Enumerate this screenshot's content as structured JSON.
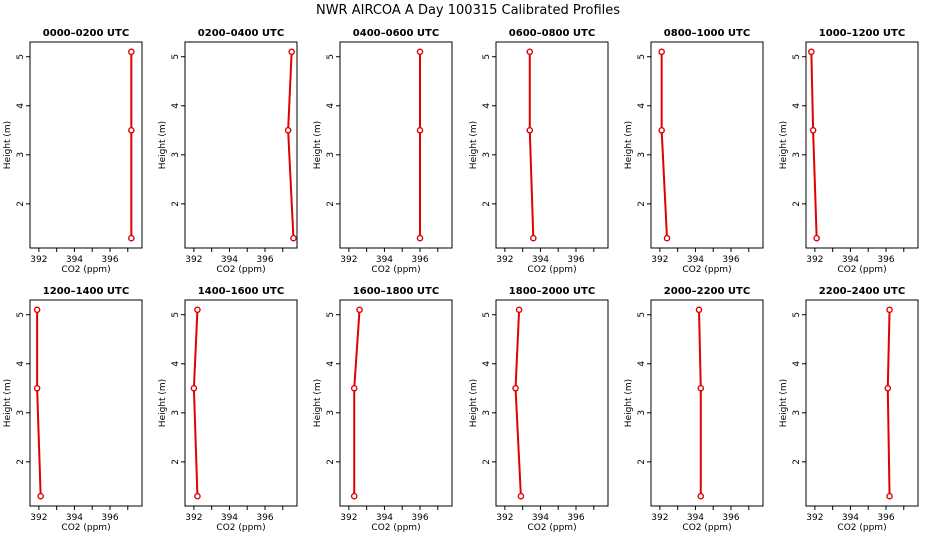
{
  "figure": {
    "title": "NWR AIRCOA A  Day 100315  Calibrated Profiles"
  },
  "colors": {
    "profile_line": "#e00000",
    "marker": "#e00000",
    "axis": "#000000",
    "background": "#ffffff"
  },
  "chart_data": [
    {
      "type": "line",
      "title": "0000–0200 UTC",
      "xlabel": "CO2 (ppm)",
      "ylabel": "Height (m)",
      "xlim": [
        391.5,
        397.8
      ],
      "ylim": [
        1.1,
        5.3
      ],
      "xticks": [
        "392",
        "394",
        "396"
      ],
      "yticks": [
        "2",
        "3",
        "4",
        "5"
      ],
      "x": [
        397.2,
        397.2,
        397.2
      ],
      "y": [
        1.3,
        3.5,
        5.1
      ]
    },
    {
      "type": "line",
      "title": "0200–0400 UTC",
      "xlabel": "CO2 (ppm)",
      "ylabel": "Height (m)",
      "xlim": [
        391.5,
        397.8
      ],
      "ylim": [
        1.1,
        5.3
      ],
      "xticks": [
        "392",
        "394",
        "396"
      ],
      "yticks": [
        "2",
        "3",
        "4",
        "5"
      ],
      "x": [
        397.6,
        397.3,
        397.5
      ],
      "y": [
        1.3,
        3.5,
        5.1
      ]
    },
    {
      "type": "line",
      "title": "0400–0600 UTC",
      "xlabel": "CO2 (ppm)",
      "ylabel": "Height (m)",
      "xlim": [
        391.5,
        397.8
      ],
      "ylim": [
        1.1,
        5.3
      ],
      "xticks": [
        "392",
        "394",
        "396"
      ],
      "yticks": [
        "2",
        "3",
        "4",
        "5"
      ],
      "x": [
        396.0,
        396.0,
        396.0
      ],
      "y": [
        1.3,
        3.5,
        5.1
      ]
    },
    {
      "type": "line",
      "title": "0600–0800 UTC",
      "xlabel": "CO2 (ppm)",
      "ylabel": "Height (m)",
      "xlim": [
        391.5,
        397.8
      ],
      "ylim": [
        1.1,
        5.3
      ],
      "xticks": [
        "392",
        "394",
        "396"
      ],
      "yticks": [
        "2",
        "3",
        "4",
        "5"
      ],
      "x": [
        393.6,
        393.4,
        393.4
      ],
      "y": [
        1.3,
        3.5,
        5.1
      ]
    },
    {
      "type": "line",
      "title": "0800–1000 UTC",
      "xlabel": "CO2 (ppm)",
      "ylabel": "Height (m)",
      "xlim": [
        391.5,
        397.8
      ],
      "ylim": [
        1.1,
        5.3
      ],
      "xticks": [
        "392",
        "394",
        "396"
      ],
      "yticks": [
        "2",
        "3",
        "4",
        "5"
      ],
      "x": [
        392.4,
        392.1,
        392.1
      ],
      "y": [
        1.3,
        3.5,
        5.1
      ]
    },
    {
      "type": "line",
      "title": "1000–1200 UTC",
      "xlabel": "CO2 (ppm)",
      "ylabel": "Height (m)",
      "xlim": [
        391.5,
        397.8
      ],
      "ylim": [
        1.1,
        5.3
      ],
      "xticks": [
        "392",
        "394",
        "396"
      ],
      "yticks": [
        "2",
        "3",
        "4",
        "5"
      ],
      "x": [
        392.1,
        391.9,
        391.8
      ],
      "y": [
        1.3,
        3.5,
        5.1
      ]
    },
    {
      "type": "line",
      "title": "1200–1400 UTC",
      "xlabel": "CO2 (ppm)",
      "ylabel": "Height (m)",
      "xlim": [
        391.5,
        397.8
      ],
      "ylim": [
        1.1,
        5.3
      ],
      "xticks": [
        "392",
        "394",
        "396"
      ],
      "yticks": [
        "2",
        "3",
        "4",
        "5"
      ],
      "x": [
        392.1,
        391.9,
        391.9
      ],
      "y": [
        1.3,
        3.5,
        5.1
      ]
    },
    {
      "type": "line",
      "title": "1400–1600 UTC",
      "xlabel": "CO2 (ppm)",
      "ylabel": "Height (m)",
      "xlim": [
        391.5,
        397.8
      ],
      "ylim": [
        1.1,
        5.3
      ],
      "xticks": [
        "392",
        "394",
        "396"
      ],
      "yticks": [
        "2",
        "3",
        "4",
        "5"
      ],
      "x": [
        392.2,
        392.0,
        392.2
      ],
      "y": [
        1.3,
        3.5,
        5.1
      ]
    },
    {
      "type": "line",
      "title": "1600–1800 UTC",
      "xlabel": "CO2 (ppm)",
      "ylabel": "Height (m)",
      "xlim": [
        391.5,
        397.8
      ],
      "ylim": [
        1.1,
        5.3
      ],
      "xticks": [
        "392",
        "394",
        "396"
      ],
      "yticks": [
        "2",
        "3",
        "4",
        "5"
      ],
      "x": [
        392.3,
        392.3,
        392.6
      ],
      "y": [
        1.3,
        3.5,
        5.1
      ]
    },
    {
      "type": "line",
      "title": "1800–2000 UTC",
      "xlabel": "CO2 (ppm)",
      "ylabel": "Height (m)",
      "xlim": [
        391.5,
        397.8
      ],
      "ylim": [
        1.1,
        5.3
      ],
      "xticks": [
        "392",
        "394",
        "396"
      ],
      "yticks": [
        "2",
        "3",
        "4",
        "5"
      ],
      "x": [
        392.9,
        392.6,
        392.8
      ],
      "y": [
        1.3,
        3.5,
        5.1
      ]
    },
    {
      "type": "line",
      "title": "2000–2200 UTC",
      "xlabel": "CO2 (ppm)",
      "ylabel": "Height (m)",
      "xlim": [
        391.5,
        397.8
      ],
      "ylim": [
        1.1,
        5.3
      ],
      "xticks": [
        "392",
        "394",
        "396"
      ],
      "yticks": [
        "2",
        "3",
        "4",
        "5"
      ],
      "x": [
        394.3,
        394.3,
        394.2
      ],
      "y": [
        1.3,
        3.5,
        5.1
      ]
    },
    {
      "type": "line",
      "title": "2200–2400 UTC",
      "xlabel": "CO2 (ppm)",
      "ylabel": "Height (m)",
      "xlim": [
        391.5,
        397.8
      ],
      "ylim": [
        1.1,
        5.3
      ],
      "xticks": [
        "392",
        "394",
        "396"
      ],
      "yticks": [
        "2",
        "3",
        "4",
        "5"
      ],
      "x": [
        396.2,
        396.1,
        396.2
      ],
      "y": [
        1.3,
        3.5,
        5.1
      ]
    }
  ]
}
